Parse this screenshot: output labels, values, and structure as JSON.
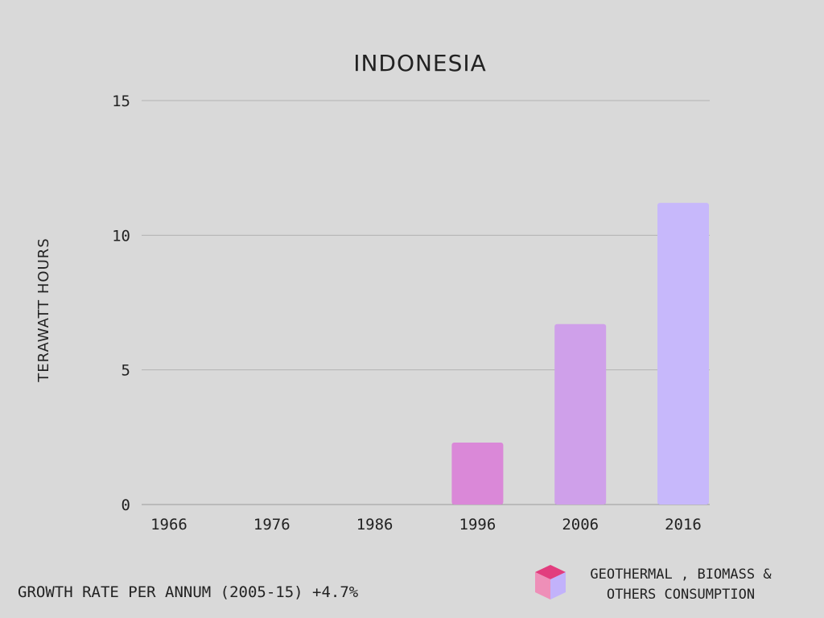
{
  "chart_data": {
    "type": "bar",
    "title": "INDONESIA",
    "ylabel": "TERAWATT HOURS",
    "xlabel": "",
    "categories": [
      "1966",
      "1976",
      "1986",
      "1996",
      "2006",
      "2016"
    ],
    "values": [
      0,
      0,
      0,
      2.3,
      6.7,
      11.2
    ],
    "ylim": [
      0,
      15
    ],
    "yticks": [
      0,
      5,
      10,
      15
    ],
    "grid": true,
    "bar_colors": [
      "#da88d8",
      "#da88d8",
      "#da88d8",
      "#da88d8",
      "#cfa0ea",
      "#c7b8fb"
    ],
    "legend": {
      "label_line1": "GEOTHERMAL , BIOMASS &",
      "label_line2": "OTHERS CONSUMPTION",
      "icon": "cube-icon",
      "icon_colors": [
        "#e23d7e",
        "#ee8fb8",
        "#c2b2fb"
      ]
    }
  },
  "footer": {
    "growth_text": "GROWTH RATE PER ANNUM (2005-15) +4.7%"
  }
}
